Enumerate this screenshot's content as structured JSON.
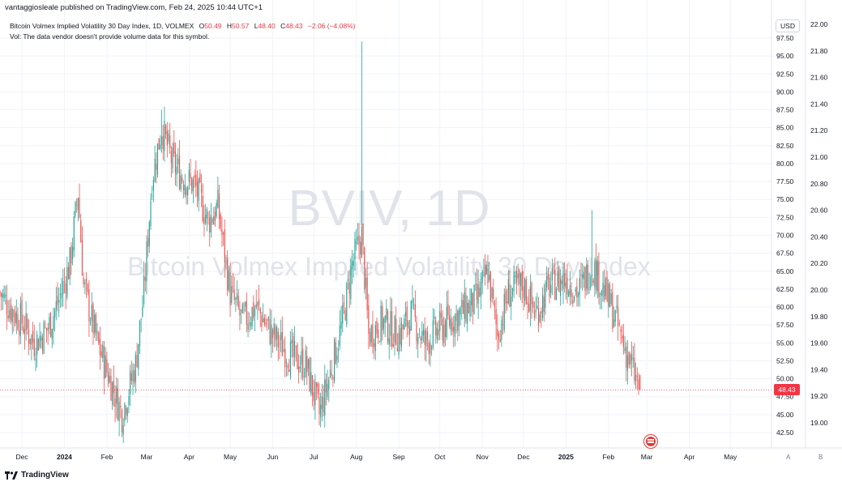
{
  "header": {
    "published": "vantaggiosleale published on TradingView.com, Feb 24, 2025 10:44 UTC+1"
  },
  "legend": {
    "title": "Bitcoin Volmex Implied Volatility 30 Day Index, 1D, VOLMEX",
    "o_label": "O",
    "o_value": "50.49",
    "h_label": "H",
    "h_value": "50.57",
    "l_label": "L",
    "l_value": "48.40",
    "c_label": "C",
    "c_value": "48.43",
    "change": "−2.06 (−4.08%)",
    "vol_note": "Vol: The data vendor doesn't provide volume data for this symbol."
  },
  "watermark": {
    "symbol": "BVIV, 1D",
    "name": "Bitcoin Volmex Implied Volatility 30 Day Index"
  },
  "price_axis": {
    "currency": "USD",
    "current_price": "48.43",
    "ticks": [
      "97.50",
      "95.00",
      "92.50",
      "90.00",
      "87.50",
      "85.00",
      "82.50",
      "80.00",
      "77.50",
      "75.00",
      "72.50",
      "70.00",
      "67.50",
      "65.00",
      "62.50",
      "60.00",
      "57.50",
      "55.00",
      "52.50",
      "50.00",
      "47.50",
      "45.00",
      "42.50"
    ]
  },
  "secondary_axis": {
    "ticks": [
      "22.00",
      "21.80",
      "21.60",
      "21.40",
      "21.20",
      "21.00",
      "20.80",
      "20.60",
      "20.40",
      "20.20",
      "20.00",
      "19.80",
      "19.60",
      "19.40",
      "19.20",
      "19.00"
    ]
  },
  "time_axis": {
    "labels": [
      "Dec",
      "2024",
      "Feb",
      "Mar",
      "Apr",
      "May",
      "Jun",
      "Jul",
      "Aug",
      "Sep",
      "Oct",
      "Nov",
      "Dec",
      "2025",
      "Feb",
      "Mar",
      "Apr",
      "May"
    ],
    "bold": [
      "2024",
      "2025"
    ]
  },
  "footer": {
    "brand": "TradingView",
    "scale_a": "A",
    "scale_b": "B"
  },
  "colors": {
    "up": "#26a69a",
    "down": "#ef5350",
    "grid": "#f0f3fa",
    "axis_text": "#131722",
    "watermark": "#e1e3eb",
    "price_line": "#f23645"
  },
  "chart_data": {
    "type": "candlestick",
    "title": "Bitcoin Volmex Implied Volatility 30 Day Index, 1D, VOLMEX",
    "interval": "1D",
    "ylim": [
      42.5,
      97.5
    ],
    "x_range": [
      "2023-11-15",
      "2025-05-31"
    ],
    "last": {
      "open": 50.49,
      "high": 50.57,
      "low": 48.4,
      "close": 48.43
    },
    "close_path": [
      {
        "date": "2023-11-15",
        "close": 62.0
      },
      {
        "date": "2023-11-22",
        "close": 60.0
      },
      {
        "date": "2023-12-01",
        "close": 58.0
      },
      {
        "date": "2023-12-10",
        "close": 55.0
      },
      {
        "date": "2023-12-20",
        "close": 57.0
      },
      {
        "date": "2023-12-28",
        "close": 61.0
      },
      {
        "date": "2024-01-05",
        "close": 66.0
      },
      {
        "date": "2024-01-11",
        "close": 76.0
      },
      {
        "date": "2024-01-15",
        "close": 63.0
      },
      {
        "date": "2024-01-25",
        "close": 55.0
      },
      {
        "date": "2024-02-03",
        "close": 50.0
      },
      {
        "date": "2024-02-12",
        "close": 45.0
      },
      {
        "date": "2024-02-22",
        "close": 52.0
      },
      {
        "date": "2024-02-28",
        "close": 62.0
      },
      {
        "date": "2024-03-05",
        "close": 78.0
      },
      {
        "date": "2024-03-12",
        "close": 85.0
      },
      {
        "date": "2024-03-20",
        "close": 80.0
      },
      {
        "date": "2024-03-28",
        "close": 78.0
      },
      {
        "date": "2024-04-05",
        "close": 77.0
      },
      {
        "date": "2024-04-15",
        "close": 72.0
      },
      {
        "date": "2024-04-22",
        "close": 74.0
      },
      {
        "date": "2024-05-01",
        "close": 62.0
      },
      {
        "date": "2024-05-10",
        "close": 58.0
      },
      {
        "date": "2024-05-20",
        "close": 60.0
      },
      {
        "date": "2024-06-01",
        "close": 56.0
      },
      {
        "date": "2024-06-15",
        "close": 53.0
      },
      {
        "date": "2024-06-25",
        "close": 52.0
      },
      {
        "date": "2024-07-01",
        "close": 48.0
      },
      {
        "date": "2024-07-05",
        "close": 45.0
      },
      {
        "date": "2024-07-12",
        "close": 50.0
      },
      {
        "date": "2024-07-22",
        "close": 58.0
      },
      {
        "date": "2024-07-29",
        "close": 66.0
      },
      {
        "date": "2024-08-05",
        "close": 70.0
      },
      {
        "date": "2024-08-10",
        "close": 56.0
      },
      {
        "date": "2024-08-20",
        "close": 58.0
      },
      {
        "date": "2024-09-01",
        "close": 56.0
      },
      {
        "date": "2024-09-10",
        "close": 59.0
      },
      {
        "date": "2024-09-20",
        "close": 55.0
      },
      {
        "date": "2024-10-01",
        "close": 57.0
      },
      {
        "date": "2024-10-15",
        "close": 59.0
      },
      {
        "date": "2024-10-28",
        "close": 61.0
      },
      {
        "date": "2024-11-05",
        "close": 65.0
      },
      {
        "date": "2024-11-12",
        "close": 56.0
      },
      {
        "date": "2024-11-20",
        "close": 62.0
      },
      {
        "date": "2024-12-01",
        "close": 63.0
      },
      {
        "date": "2024-12-10",
        "close": 59.0
      },
      {
        "date": "2024-12-20",
        "close": 63.0
      },
      {
        "date": "2025-01-01",
        "close": 64.0
      },
      {
        "date": "2025-01-10",
        "close": 62.0
      },
      {
        "date": "2025-01-20",
        "close": 66.0
      },
      {
        "date": "2025-01-27",
        "close": 63.0
      },
      {
        "date": "2025-02-03",
        "close": 60.0
      },
      {
        "date": "2025-02-10",
        "close": 56.0
      },
      {
        "date": "2025-02-17",
        "close": 52.0
      },
      {
        "date": "2025-02-24",
        "close": 48.43
      }
    ],
    "spikes": [
      {
        "date": "2024-03-12",
        "high": 87.5
      },
      {
        "date": "2024-08-05",
        "high": 97.0
      },
      {
        "date": "2025-01-20",
        "high": 73.5
      }
    ]
  }
}
